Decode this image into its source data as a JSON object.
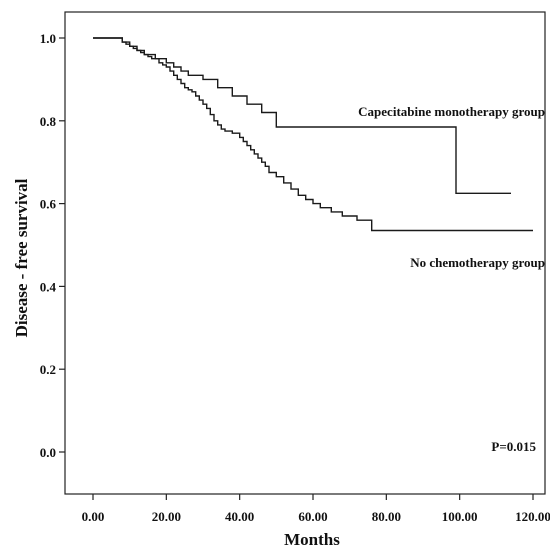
{
  "chart_data": {
    "type": "line",
    "step": true,
    "xlabel": "Months",
    "ylabel": "Disease - free survival",
    "xlim": [
      0,
      120
    ],
    "ylim": [
      0,
      1.0
    ],
    "xticks": [
      0,
      20,
      40,
      60,
      80,
      100,
      120
    ],
    "xtick_labels": [
      "0.00",
      "20.00",
      "40.00",
      "60.00",
      "80.00",
      "100.00",
      "120.00"
    ],
    "yticks": [
      0.0,
      0.2,
      0.4,
      0.6,
      0.8,
      1.0
    ],
    "ytick_labels": [
      "0.0",
      "0.2",
      "0.4",
      "0.6",
      "0.8",
      "1.0"
    ],
    "grid": false,
    "annotation": "P=0.015",
    "series": [
      {
        "name": "Capecitabine monotherapy group",
        "color": "#1a1a1a",
        "x": [
          0,
          8,
          10,
          12,
          14,
          17,
          20,
          22,
          24,
          26,
          30,
          34,
          38,
          42,
          46,
          50,
          99,
          114
        ],
        "y": [
          1.0,
          0.99,
          0.98,
          0.97,
          0.96,
          0.95,
          0.94,
          0.93,
          0.92,
          0.91,
          0.9,
          0.88,
          0.86,
          0.84,
          0.82,
          0.785,
          0.625,
          0.625
        ]
      },
      {
        "name": "No chemotherapy group",
        "color": "#1a1a1a",
        "x": [
          0,
          8,
          9,
          10,
          11,
          12,
          13,
          14,
          15,
          16,
          18,
          19,
          20,
          21,
          22,
          23,
          24,
          25,
          26,
          27,
          28,
          29,
          30,
          31,
          32,
          33,
          34,
          35,
          36,
          38,
          40,
          41,
          42,
          43,
          44,
          45,
          46,
          47,
          48,
          50,
          52,
          54,
          56,
          58,
          60,
          62,
          65,
          68,
          72,
          76,
          120
        ],
        "y": [
          1.0,
          0.99,
          0.985,
          0.98,
          0.975,
          0.97,
          0.965,
          0.96,
          0.955,
          0.95,
          0.94,
          0.935,
          0.93,
          0.92,
          0.91,
          0.9,
          0.89,
          0.88,
          0.875,
          0.87,
          0.86,
          0.85,
          0.84,
          0.83,
          0.815,
          0.8,
          0.79,
          0.78,
          0.775,
          0.77,
          0.76,
          0.75,
          0.74,
          0.73,
          0.72,
          0.71,
          0.7,
          0.69,
          0.675,
          0.665,
          0.65,
          0.635,
          0.62,
          0.61,
          0.6,
          0.59,
          0.58,
          0.57,
          0.56,
          0.535,
          0.535
        ]
      }
    ]
  }
}
